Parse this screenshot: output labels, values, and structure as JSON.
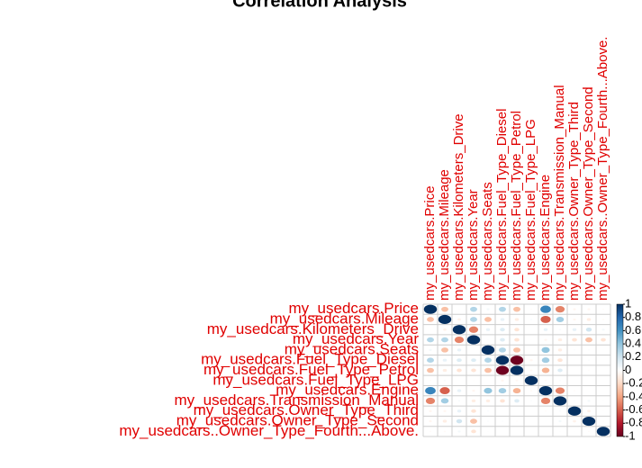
{
  "chart_data": {
    "type": "corrplot",
    "title": "Correlation Analysis",
    "variables": [
      "my_usedcars.Price",
      "my_usedcars.Mileage",
      "my_usedcars.Kilometers_Drive",
      "my_usedcars.Year",
      "my_usedcars.Seats",
      "my_usedcars.Fuel_Type_Diesel",
      "my_usedcars.Fuel_Type_Petrol",
      "my_usedcars.Fuel_Type_LPG",
      "my_usedcars.Engine",
      "my_usedcars.Transmission_Manual",
      "my_usedcars.Owner_Type_Third",
      "my_usedcars.Owner_Type_Second",
      "my_usedcars..Owner_Type_Fourth...Above."
    ],
    "matrix": [
      [
        1,
        -0.3,
        -0.01,
        0.3,
        0.05,
        0.3,
        -0.3,
        -0.02,
        0.66,
        -0.5,
        -0.05,
        -0.05,
        -0.02
      ],
      [
        -0.3,
        1,
        -0.07,
        0.3,
        -0.3,
        0.1,
        -0.1,
        0.03,
        -0.6,
        0.35,
        -0.05,
        -0.1,
        -0.03
      ],
      [
        -0.01,
        -0.07,
        1,
        -0.5,
        0.1,
        0.15,
        -0.15,
        0.01,
        0.1,
        0.03,
        0.1,
        0.2,
        0.05
      ],
      [
        0.3,
        0.3,
        -0.5,
        1,
        0.01,
        0.15,
        -0.15,
        -0.01,
        -0.05,
        -0.1,
        -0.15,
        -0.3,
        -0.15
      ],
      [
        0.05,
        -0.3,
        0.1,
        0.01,
        1,
        0.3,
        -0.3,
        0,
        0.4,
        -0.1,
        0.02,
        0.02,
        0.01
      ],
      [
        0.3,
        0.1,
        0.15,
        0.15,
        0.3,
        1,
        -0.98,
        -0.05,
        0.35,
        -0.15,
        0.01,
        0.02,
        0
      ],
      [
        -0.3,
        -0.1,
        -0.15,
        -0.15,
        -0.3,
        -0.98,
        1,
        -0.04,
        -0.35,
        0.15,
        0,
        -0.02,
        0
      ],
      [
        -0.02,
        0.03,
        0.01,
        -0.01,
        0,
        -0.05,
        -0.04,
        1,
        -0.03,
        0.02,
        0,
        0,
        0
      ],
      [
        0.66,
        -0.6,
        0.1,
        -0.05,
        0.4,
        0.35,
        -0.35,
        -0.03,
        1,
        -0.5,
        -0.02,
        0.01,
        0
      ],
      [
        -0.5,
        0.35,
        0.03,
        -0.1,
        -0.1,
        -0.15,
        0.15,
        0.02,
        -0.5,
        1,
        0.02,
        0.05,
        0.01
      ],
      [
        -0.05,
        -0.05,
        0.1,
        -0.15,
        0.02,
        0.01,
        0,
        0,
        -0.02,
        0.02,
        1,
        -0.07,
        -0.01
      ],
      [
        -0.05,
        -0.1,
        0.2,
        -0.3,
        0.02,
        0.02,
        -0.02,
        0,
        0.01,
        0.05,
        -0.07,
        1,
        -0.02
      ],
      [
        -0.02,
        -0.03,
        0.05,
        -0.15,
        0.01,
        0,
        0,
        0,
        0,
        0.01,
        -0.01,
        -0.02,
        1
      ]
    ],
    "colors": [
      "#67001f",
      "#b2182b",
      "#d6604d",
      "#f4a582",
      "#fddbc7",
      "#ffffff",
      "#d1e5f0",
      "#92c5de",
      "#4393c3",
      "#2166ac",
      "#053061"
    ],
    "label_color": "#e00000",
    "zlim": [
      -1,
      1
    ],
    "zticks": [
      1,
      0.8,
      0.6,
      0.4,
      0.2,
      0,
      -0.2,
      -0.4,
      -0.6,
      -0.8,
      -1
    ]
  }
}
